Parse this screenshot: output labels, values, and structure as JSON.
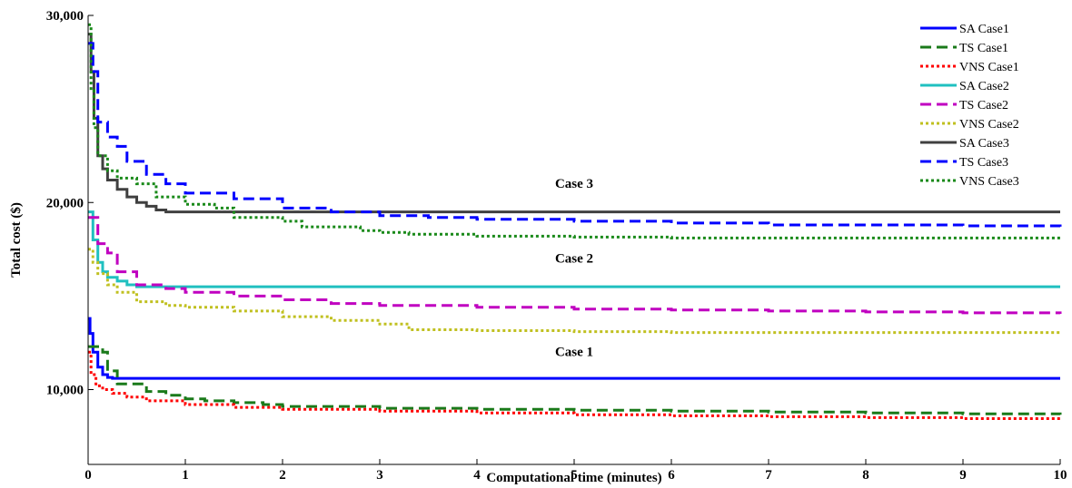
{
  "chart_data": {
    "type": "line",
    "title": "",
    "xlabel": "Computational time (minutes)",
    "ylabel": "Total cost ($)",
    "xlim": [
      0,
      10
    ],
    "ylim": [
      6000,
      30000
    ],
    "xticks": [
      0,
      1,
      2,
      3,
      4,
      5,
      6,
      7,
      8,
      9,
      10
    ],
    "xtick_labels": [
      "0",
      "1",
      "2",
      "3",
      "4",
      "5",
      "6",
      "7",
      "8",
      "9",
      "10"
    ],
    "yticks": [
      10000,
      20000,
      30000
    ],
    "ytick_labels": [
      "10,000",
      "20,000",
      "30,000"
    ],
    "grid": false,
    "legend_position": "top-right",
    "annotations": [
      {
        "text": "Case 3",
        "x": 5.0,
        "y": 20800
      },
      {
        "text": "Case 2",
        "x": 5.0,
        "y": 16800
      },
      {
        "text": "Case 1",
        "x": 5.0,
        "y": 11800
      }
    ],
    "series": [
      {
        "name": "SA Case1",
        "color": "#0000ff",
        "dash": "solid",
        "x": [
          0,
          0.02,
          0.05,
          0.1,
          0.15,
          0.2,
          0.25,
          0.3,
          10
        ],
        "y": [
          13800,
          13000,
          12000,
          11200,
          10800,
          10650,
          10600,
          10600,
          10600
        ]
      },
      {
        "name": "TS Case1",
        "color": "#1a7a1a",
        "dash": "dashed",
        "x": [
          0,
          0.15,
          0.2,
          0.3,
          0.5,
          0.6,
          0.8,
          1.0,
          1.2,
          1.5,
          1.8,
          2.0,
          3.0,
          4.0,
          5.0,
          6.0,
          7.0,
          8.0,
          9.0,
          10.0
        ],
        "y": [
          12300,
          12000,
          11000,
          10300,
          10300,
          9900,
          9700,
          9500,
          9400,
          9300,
          9200,
          9100,
          9000,
          8950,
          8900,
          8850,
          8800,
          8750,
          8700,
          8650
        ]
      },
      {
        "name": "VNS Case1",
        "color": "#ff0000",
        "dash": "dotted",
        "x": [
          0,
          0.03,
          0.08,
          0.15,
          0.25,
          0.4,
          0.6,
          1.0,
          1.5,
          2.0,
          3.0,
          4.0,
          5.0,
          6.0,
          7.0,
          8.0,
          9.0,
          10.0
        ],
        "y": [
          12000,
          10800,
          10200,
          10000,
          9800,
          9600,
          9400,
          9200,
          9050,
          8950,
          8850,
          8750,
          8650,
          8600,
          8550,
          8500,
          8450,
          8400
        ]
      },
      {
        "name": "SA Case2",
        "color": "#20c0c0",
        "dash": "solid",
        "x": [
          0,
          0.05,
          0.1,
          0.15,
          0.2,
          0.3,
          0.4,
          0.5,
          10
        ],
        "y": [
          19500,
          18000,
          16800,
          16300,
          16000,
          15800,
          15600,
          15500,
          15500
        ]
      },
      {
        "name": "TS Case2",
        "color": "#c000c0",
        "dash": "dashed",
        "x": [
          0,
          0.1,
          0.2,
          0.3,
          0.5,
          0.8,
          1.0,
          1.5,
          2.0,
          2.5,
          3.0,
          4.0,
          5.0,
          6.0,
          7.0,
          8.0,
          9.0,
          10.0
        ],
        "y": [
          19200,
          17800,
          17300,
          16300,
          15600,
          15400,
          15200,
          15000,
          14800,
          14600,
          14500,
          14400,
          14300,
          14250,
          14200,
          14150,
          14100,
          14050
        ]
      },
      {
        "name": "VNS Case2",
        "color": "#c0c020",
        "dash": "dotted",
        "x": [
          0,
          0.05,
          0.1,
          0.2,
          0.3,
          0.5,
          0.8,
          1.0,
          1.5,
          2.0,
          2.5,
          3.0,
          3.3,
          4.0,
          5.0,
          6.0,
          7.0,
          8.0,
          9.0,
          10.0
        ],
        "y": [
          17500,
          16800,
          16200,
          15600,
          15200,
          14700,
          14500,
          14400,
          14200,
          13900,
          13700,
          13500,
          13200,
          13150,
          13100,
          13050,
          13050,
          13050,
          13050,
          13000
        ]
      },
      {
        "name": "SA Case3",
        "color": "#404040",
        "dash": "solid",
        "x": [
          0,
          0.03,
          0.06,
          0.1,
          0.15,
          0.2,
          0.3,
          0.4,
          0.5,
          0.6,
          0.7,
          0.8,
          10
        ],
        "y": [
          29000,
          27000,
          24500,
          22500,
          21800,
          21200,
          20700,
          20300,
          20000,
          19800,
          19600,
          19500,
          19500
        ]
      },
      {
        "name": "TS Case3",
        "color": "#0000ff",
        "dash": "dashed",
        "x": [
          0,
          0.05,
          0.1,
          0.2,
          0.3,
          0.4,
          0.6,
          0.8,
          1.0,
          1.5,
          2.0,
          2.5,
          3.0,
          3.5,
          4.0,
          5.0,
          6.0,
          7.0,
          8.0,
          9.0,
          10.0
        ],
        "y": [
          28500,
          27000,
          24300,
          23500,
          23000,
          22200,
          21500,
          21000,
          20500,
          20200,
          19700,
          19500,
          19300,
          19200,
          19100,
          19000,
          18900,
          18800,
          18800,
          18750,
          18700
        ]
      },
      {
        "name": "VNS Case3",
        "color": "#1a8a1a",
        "dash": "dotted",
        "x": [
          0,
          0.03,
          0.06,
          0.1,
          0.2,
          0.3,
          0.5,
          0.7,
          1.0,
          1.3,
          1.5,
          2.0,
          2.2,
          2.8,
          3.0,
          3.3,
          4.0,
          5.0,
          6.0,
          7.0,
          8.0,
          9.0,
          10.0
        ],
        "y": [
          29500,
          26000,
          24000,
          22500,
          21700,
          21300,
          21000,
          20300,
          19900,
          19700,
          19200,
          19000,
          18700,
          18500,
          18400,
          18300,
          18200,
          18150,
          18100,
          18100,
          18100,
          18100,
          18100
        ]
      }
    ]
  }
}
